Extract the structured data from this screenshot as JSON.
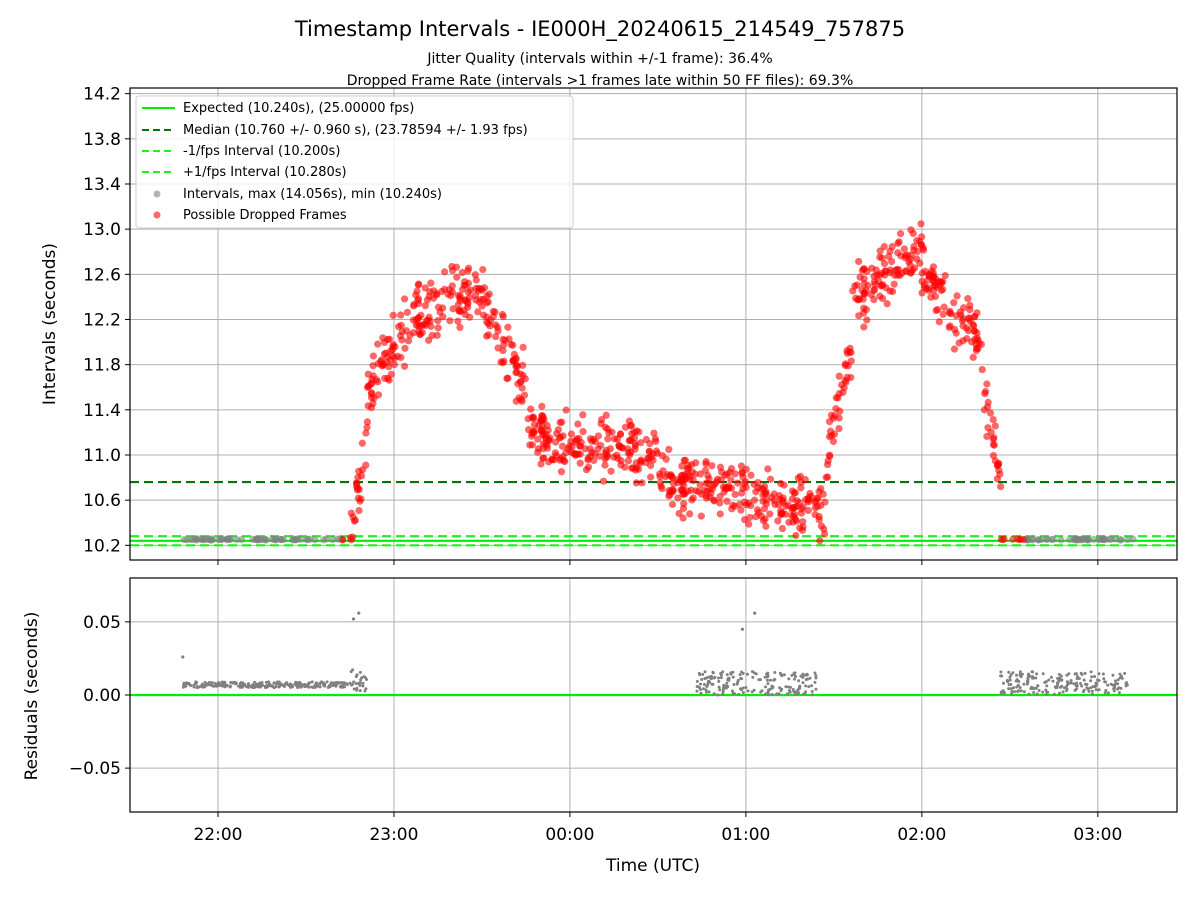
{
  "title": "Timestamp Intervals - IE000H_20240615_214549_757875",
  "subtitle_1": "Jitter Quality (intervals within +/-1 frame): 36.4%",
  "subtitle_2": "Dropped Frame Rate (intervals >1 frames late within 50 FF files): 69.3%",
  "colors": {
    "expected": "#00ee00",
    "median": "#007700",
    "bounds": "#22ee22",
    "intervals": "#808080",
    "dropped": "#ff0000",
    "grid": "#b0b0b0"
  },
  "chart_data": [
    {
      "type": "scatter",
      "ylabel": "Intervals (seconds)",
      "xlabel": "",
      "ylim": [
        10.07,
        14.25
      ],
      "y_ticks": [
        "10.2",
        "10.6",
        "11.0",
        "11.4",
        "11.8",
        "12.2",
        "12.6",
        "13.0",
        "13.4",
        "13.8",
        "14.2"
      ],
      "y_tick_values": [
        10.2,
        10.6,
        11.0,
        11.4,
        11.8,
        12.2,
        12.6,
        13.0,
        13.4,
        13.8,
        14.2
      ],
      "x_range_hours": [
        21.5,
        27.45
      ],
      "grid": true,
      "legend_position": "upper-left",
      "lines": [
        {
          "name": "Expected (10.240s), (25.00000 fps)",
          "y": 10.24,
          "style": "solid",
          "color": "#00ee00"
        },
        {
          "name": "Median (10.760 +/- 0.960 s), (23.78594 +/- 1.93 fps)",
          "y": 10.76,
          "style": "dashed",
          "color": "#007700"
        },
        {
          "name": "-1/fps Interval (10.200s)",
          "y": 10.2,
          "style": "dashed",
          "color": "#22ee22"
        },
        {
          "name": "+1/fps Interval (10.280s)",
          "y": 10.28,
          "style": "dashed",
          "color": "#22ee22"
        }
      ],
      "scatter_series": [
        {
          "name": "Intervals, max (14.056s), min (10.240s)",
          "color": "#808080"
        },
        {
          "name": "Possible Dropped Frames",
          "color": "#ff0000"
        }
      ],
      "interval_profile": {
        "description_key": "approximate trend of interval values (hours since midnight of 2024-06-15, seconds)",
        "segments": [
          {
            "x": [
              21.8,
              22.75
            ],
            "y": [
              10.24,
              10.24
            ]
          },
          {
            "x": [
              22.75,
              22.85
            ],
            "y": [
              10.24,
              11.2
            ]
          },
          {
            "x": [
              22.85,
              23.1
            ],
            "y": [
              11.6,
              12.2
            ]
          },
          {
            "x": [
              23.1,
              23.5
            ],
            "y": [
              12.2,
              12.5
            ]
          },
          {
            "x": [
              23.5,
              23.75
            ],
            "y": [
              12.4,
              11.6
            ]
          },
          {
            "x": [
              23.75,
              24.5
            ],
            "y": [
              11.2,
              11.0
            ]
          },
          {
            "x": [
              24.5,
              25.45
            ],
            "y": [
              10.8,
              10.5
            ]
          },
          {
            "x": [
              25.45,
              25.6
            ],
            "y": [
              10.9,
              12.0
            ]
          },
          {
            "x": [
              25.6,
              26.0
            ],
            "y": [
              12.4,
              12.8
            ]
          },
          {
            "x": [
              26.0,
              26.35
            ],
            "y": [
              12.6,
              12.0
            ]
          },
          {
            "x": [
              26.35,
              26.45
            ],
            "y": [
              11.6,
              10.8
            ]
          },
          {
            "x": [
              26.45,
              27.2
            ],
            "y": [
              10.24,
              10.24
            ]
          }
        ]
      }
    },
    {
      "type": "scatter",
      "ylabel": "Residuals (seconds)",
      "xlabel": "Time (UTC)",
      "ylim": [
        -0.08,
        0.08
      ],
      "y_ticks": [
        "−0.05",
        "0.00",
        "0.05"
      ],
      "y_tick_values": [
        -0.05,
        0.0,
        0.05
      ],
      "x_ticks": [
        "22:00",
        "23:00",
        "00:00",
        "01:00",
        "02:00",
        "03:00"
      ],
      "x_tick_values": [
        22,
        23,
        24,
        25,
        26,
        27
      ],
      "x_range_hours": [
        21.5,
        27.45
      ],
      "grid": true,
      "zero_line_color": "#00ee00",
      "clusters": [
        {
          "x_range": [
            21.8,
            22.75
          ],
          "residual": 0.007,
          "spread": 0.002
        },
        {
          "x_range": [
            22.75,
            22.85
          ],
          "residual": 0.01,
          "spread": 0.008
        },
        {
          "x_range": [
            24.72,
            25.4
          ],
          "residual": 0.008,
          "spread": 0.008
        },
        {
          "x_range": [
            26.43,
            27.17
          ],
          "residual": 0.008,
          "spread": 0.008
        }
      ],
      "notable_points": [
        {
          "x": 21.8,
          "y": 0.026
        },
        {
          "x": 22.77,
          "y": 0.052
        },
        {
          "x": 22.8,
          "y": 0.056
        },
        {
          "x": 24.98,
          "y": 0.045
        },
        {
          "x": 25.05,
          "y": 0.056
        }
      ]
    }
  ]
}
